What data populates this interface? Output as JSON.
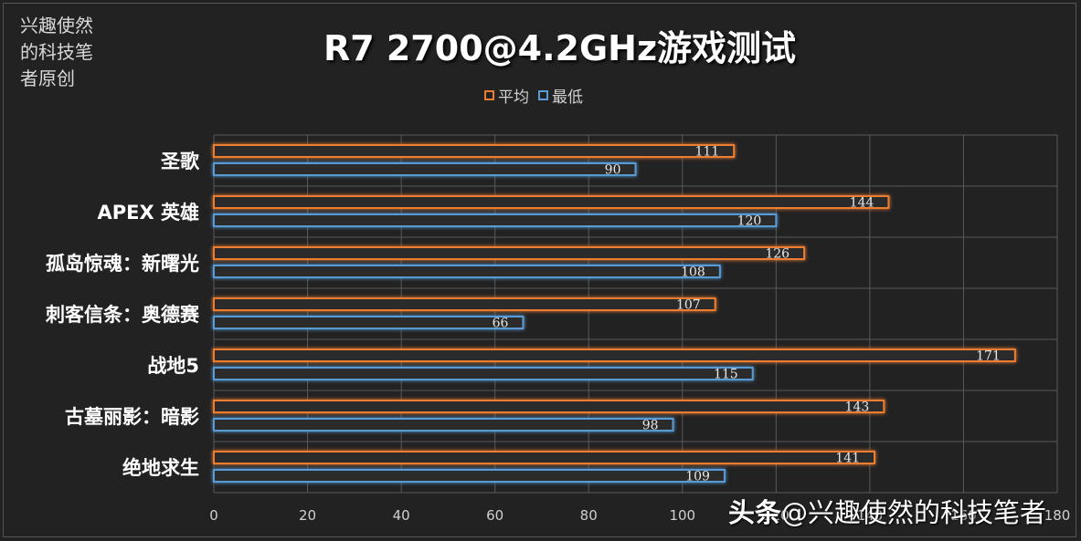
{
  "credit": "兴趣使然\n的科技笔\n者原创",
  "watermark": {
    "prefix": "头条",
    "handle": "@兴趣使然的科技笔者"
  },
  "chart_data": {
    "type": "bar",
    "orientation": "horizontal",
    "title": "R7 2700@4.2GHz游戏测试",
    "categories": [
      "圣歌",
      "APEX 英雄",
      "孤岛惊魂：新曙光",
      "刺客信条：奥德赛",
      "战地5",
      "古墓丽影：暗影",
      "绝地求生"
    ],
    "series": [
      {
        "name": "平均",
        "values": [
          111,
          144,
          126,
          107,
          171,
          143,
          141
        ]
      },
      {
        "name": "最低",
        "values": [
          90,
          120,
          108,
          66,
          115,
          98,
          109
        ]
      }
    ],
    "xlim": [
      0,
      180
    ],
    "xticks": [
      "0",
      "20",
      "40",
      "60",
      "80",
      "100",
      "120",
      "140",
      "160",
      "180"
    ],
    "grid": true,
    "legend_position": "top",
    "colors": {
      "平均": "#ed7d31",
      "最低": "#5b9bd5"
    }
  }
}
